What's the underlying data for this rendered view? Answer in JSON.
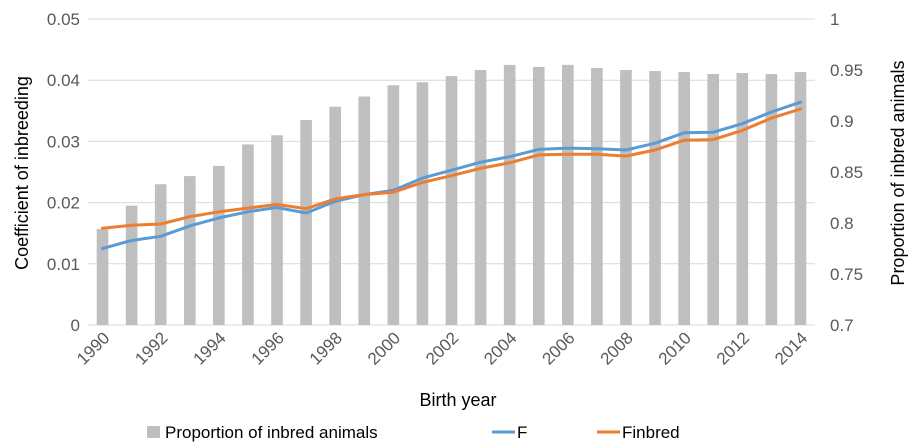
{
  "chart_data": {
    "type": "bar+line",
    "x": [
      1990,
      1991,
      1992,
      1993,
      1994,
      1995,
      1996,
      1997,
      1998,
      1999,
      2000,
      2001,
      2002,
      2003,
      2004,
      2005,
      2006,
      2007,
      2008,
      2009,
      2010,
      2011,
      2012,
      2013,
      2014
    ],
    "x_tick_labels": [
      "1990",
      "1992",
      "1994",
      "1996",
      "1998",
      "2000",
      "2002",
      "2004",
      "2006",
      "2008",
      "2010",
      "2012",
      "2014"
    ],
    "xlabel": "Birth year",
    "ylabel_left": "Coefficient of inbreeding",
    "ylabel_right": "Proportion of inbred animals",
    "ylim_left": [
      0,
      0.05
    ],
    "ylim_right": [
      0.7,
      1.0
    ],
    "y_ticks_left": [
      "0",
      "0.01",
      "0.02",
      "0.03",
      "0.04",
      "0.05"
    ],
    "y_ticks_right": [
      "0.7",
      "0.75",
      "0.8",
      "0.85",
      "0.9",
      "0.95",
      "1"
    ],
    "grid": "horizontal",
    "legend_position": "bottom",
    "bars": {
      "name": "Proportion of inbred animals",
      "axis": "right",
      "color": "#bfbfbf",
      "values": [
        0.794,
        0.817,
        0.838,
        0.846,
        0.856,
        0.877,
        0.886,
        0.901,
        0.914,
        0.924,
        0.935,
        0.938,
        0.944,
        0.95,
        0.955,
        0.953,
        0.955,
        0.952,
        0.95,
        0.949,
        0.948,
        0.946,
        0.947,
        0.946,
        0.948
      ]
    },
    "series": [
      {
        "name": "F",
        "axis": "left",
        "color": "#5b9bd5",
        "values": [
          0.0125,
          0.0138,
          0.0145,
          0.0162,
          0.0175,
          0.0185,
          0.0192,
          0.0183,
          0.0202,
          0.0213,
          0.022,
          0.024,
          0.0253,
          0.0266,
          0.0275,
          0.0287,
          0.0289,
          0.0288,
          0.0286,
          0.0297,
          0.0314,
          0.0315,
          0.0329,
          0.0348,
          0.0364
        ]
      },
      {
        "name": "Finbred",
        "axis": "left",
        "color": "#ed7d31",
        "values": [
          0.0158,
          0.0163,
          0.0165,
          0.0177,
          0.0185,
          0.0191,
          0.0197,
          0.019,
          0.0206,
          0.0213,
          0.0217,
          0.0233,
          0.0244,
          0.0256,
          0.0265,
          0.0278,
          0.0279,
          0.0279,
          0.0276,
          0.0286,
          0.0302,
          0.0303,
          0.0318,
          0.0338,
          0.0353
        ]
      }
    ]
  }
}
